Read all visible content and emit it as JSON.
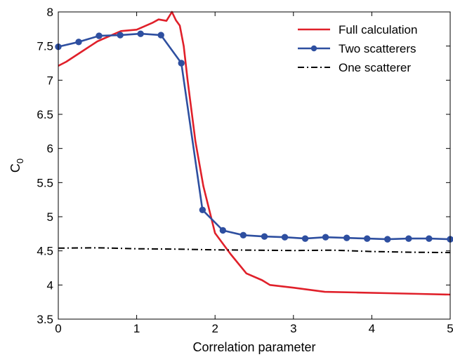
{
  "chart_data": {
    "type": "line",
    "xlabel": "Correlation parameter",
    "ylabel": "C",
    "ylabel_subscript": "0",
    "xlim": [
      0,
      5
    ],
    "ylim": [
      3.5,
      8
    ],
    "xticks": [
      0,
      1,
      2,
      3,
      4,
      5
    ],
    "xtick_labels": [
      "0",
      "1",
      "2",
      "3",
      "4",
      "5"
    ],
    "yticks": [
      3.5,
      4,
      4.5,
      5,
      5.5,
      6,
      6.5,
      7,
      7.5,
      8
    ],
    "ytick_labels": [
      "3.5",
      "4",
      "4.5",
      "5",
      "5.5",
      "6",
      "6.5",
      "7",
      "7.5",
      "8"
    ],
    "grid": false,
    "legend_position": "top-right",
    "series": [
      {
        "name": "Full calculation",
        "color": "#e0202a",
        "style": "solid",
        "marker": "none",
        "x": [
          0,
          0.1,
          0.3,
          0.5,
          0.6,
          0.8,
          1.0,
          1.1,
          1.2,
          1.28,
          1.38,
          1.45,
          1.5,
          1.55,
          1.6,
          1.65,
          1.75,
          1.85,
          2.0,
          2.2,
          2.4,
          2.6,
          2.7,
          3.0,
          3.4,
          3.8,
          4.2,
          4.6,
          5.0
        ],
        "y": [
          7.21,
          7.27,
          7.42,
          7.57,
          7.62,
          7.72,
          7.74,
          7.79,
          7.84,
          7.89,
          7.87,
          8.0,
          7.88,
          7.8,
          7.5,
          7.0,
          6.1,
          5.45,
          4.76,
          4.45,
          4.17,
          4.07,
          4.0,
          3.96,
          3.9,
          3.89,
          3.88,
          3.87,
          3.86
        ]
      },
      {
        "name": "Two scatterers",
        "color": "#2e4fa0",
        "style": "solid",
        "marker": "circle",
        "x": [
          0,
          0.26,
          0.52,
          0.79,
          1.05,
          1.31,
          1.57,
          1.84,
          2.1,
          2.36,
          2.63,
          2.89,
          3.15,
          3.41,
          3.68,
          3.94,
          4.2,
          4.47,
          4.73,
          5.0
        ],
        "y": [
          7.49,
          7.56,
          7.65,
          7.66,
          7.68,
          7.66,
          7.25,
          5.1,
          4.8,
          4.73,
          4.71,
          4.7,
          4.68,
          4.7,
          4.69,
          4.68,
          4.67,
          4.68,
          4.68,
          4.67
        ]
      },
      {
        "name": "One scatterer",
        "color": "#000000",
        "style": "dashdot",
        "marker": "none",
        "x": [
          0,
          0.5,
          1.0,
          1.5,
          2.0,
          2.5,
          3.0,
          3.5,
          4.0,
          4.5,
          5.0
        ],
        "y": [
          4.54,
          4.545,
          4.53,
          4.525,
          4.515,
          4.51,
          4.505,
          4.51,
          4.49,
          4.48,
          4.475
        ]
      }
    ]
  }
}
